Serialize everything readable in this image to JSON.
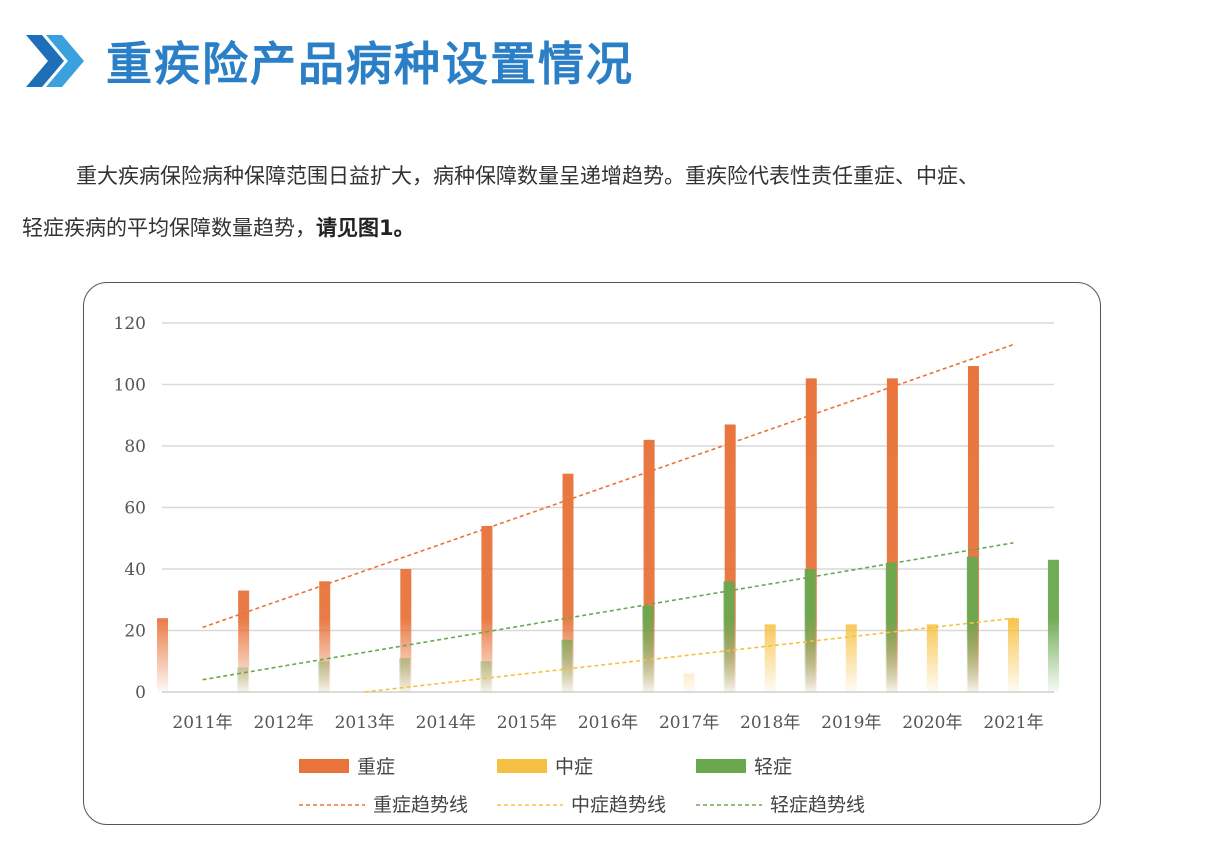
{
  "header": {
    "title": "重疾险产品病种设置情况",
    "brand_color": "#2a7fc6"
  },
  "paragraph": {
    "line1": "重大疾病保险病种保障范围日益扩大，病种保障数量呈递增趋势。重疾险代表性责任重症、中症、",
    "line2_plain": "轻症疾病的平均保障数量趋势，",
    "line2_bold": "请见图1。"
  },
  "chart_data": {
    "type": "bar",
    "categories": [
      "2011年",
      "2012年",
      "2013年",
      "2014年",
      "2015年",
      "2016年",
      "2017年",
      "2018年",
      "2019年",
      "2020年",
      "2021年"
    ],
    "ylim": [
      0,
      120
    ],
    "yticks": [
      0,
      20,
      40,
      60,
      80,
      100,
      120
    ],
    "grid": true,
    "legend_position": "bottom",
    "series": [
      {
        "name": "重症",
        "color": "#e8743b",
        "values": [
          24,
          33,
          36,
          40,
          54,
          71,
          82,
          87,
          102,
          102,
          106
        ]
      },
      {
        "name": "中症",
        "color": "#f6c142",
        "values": [
          0,
          0,
          0,
          0,
          0,
          0,
          6,
          22,
          22,
          22,
          24
        ]
      },
      {
        "name": "轻症",
        "color": "#6aa84f",
        "values": [
          8,
          10,
          11,
          10,
          17,
          28,
          36,
          40,
          42,
          44,
          43
        ]
      }
    ],
    "trendlines": [
      {
        "name": "重症趋势线",
        "color": "#e8743b",
        "start": 21,
        "end": 113
      },
      {
        "name": "中症趋势线",
        "color": "#f6c142",
        "start": 0,
        "end": 24
      },
      {
        "name": "轻症趋势线",
        "color": "#6aa84f",
        "start": 4,
        "end": 48.5
      }
    ]
  }
}
